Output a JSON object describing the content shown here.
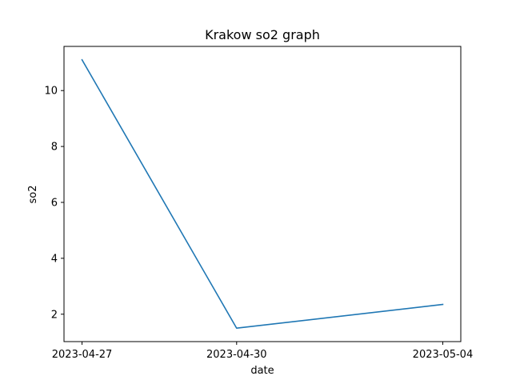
{
  "chart_data": {
    "type": "line",
    "title": "Krakow so2 graph",
    "xlabel": "date",
    "ylabel": "so2",
    "x": [
      "2023-04-27",
      "2023-04-30",
      "2023-05-04"
    ],
    "series": [
      {
        "name": "",
        "values": [
          11.1,
          1.5,
          2.35
        ],
        "color": "#1f77b4"
      }
    ],
    "xticks": [
      "2023-04-27",
      "2023-04-30",
      "2023-05-04"
    ],
    "yticks": [
      2,
      4,
      6,
      8,
      10
    ],
    "ylim": [
      1.02,
      11.58
    ],
    "grid": false,
    "legend": "none"
  }
}
